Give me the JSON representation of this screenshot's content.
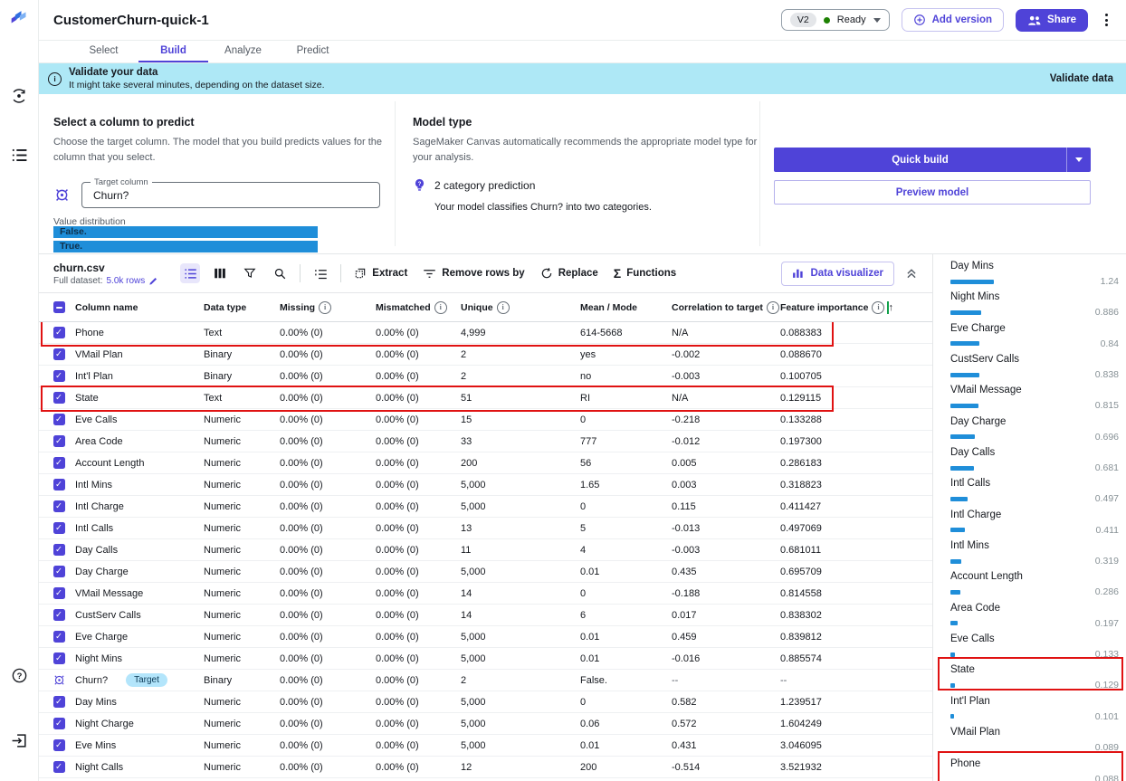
{
  "colors": {
    "accent": "#4f43d8",
    "banner_bg": "#aee8f6",
    "bar_blue": "#1f8ed9",
    "status_green": "#1d8102",
    "annotation_red": "#e01212",
    "annotation_green": "#12a14b",
    "target_badge_bg": "#b3e5fb"
  },
  "header": {
    "title": "CustomerChurn-quick-1",
    "version": "V2",
    "status": "Ready",
    "add_version": "Add version",
    "share": "Share"
  },
  "tabs": [
    {
      "label": "Select",
      "active": false
    },
    {
      "label": "Build",
      "active": true
    },
    {
      "label": "Analyze",
      "active": false
    },
    {
      "label": "Predict",
      "active": false
    }
  ],
  "banner": {
    "title": "Validate your data",
    "subtitle": "It might take several minutes, depending on the dataset size.",
    "action": "Validate data"
  },
  "target_section": {
    "title": "Select a column to predict",
    "description": "Choose the target column. The model that you build predicts values for the column that you select.",
    "target_column_label": "Target column",
    "target_column_value": "Churn?",
    "value_distribution_label": "Value distribution",
    "distribution": [
      {
        "label": "False."
      },
      {
        "label": "True."
      }
    ]
  },
  "model_section": {
    "title": "Model type",
    "description": "SageMaker Canvas automatically recommends the appropriate model type for your analysis.",
    "recommendation": "2 category prediction",
    "detail": "Your model classifies Churn? into two categories."
  },
  "actions": {
    "quick_build": "Quick build",
    "preview_model": "Preview model"
  },
  "toolbar": {
    "filename": "churn.csv",
    "full_dataset_label": "Full dataset:",
    "rows_link": "5.0k rows",
    "extract": "Extract",
    "remove_rows": "Remove rows by",
    "replace": "Replace",
    "functions": "Functions",
    "data_visualizer": "Data visualizer"
  },
  "table": {
    "headers": [
      {
        "label": "Column name"
      },
      {
        "label": "Data type"
      },
      {
        "label": "Missing",
        "info": true
      },
      {
        "label": "Mismatched",
        "info": true
      },
      {
        "label": "Unique",
        "info": true
      },
      {
        "label": "Mean / Mode"
      },
      {
        "label": "Correlation to target",
        "info": true
      },
      {
        "label": "Feature importance",
        "info": true,
        "sort": "up",
        "annotated": true
      }
    ],
    "rows": [
      {
        "name": "Phone",
        "type": "Text",
        "missing": "0.00% (0)",
        "mismatched": "0.00% (0)",
        "unique": "4,999",
        "mean": "614-5668",
        "corr": "N/A",
        "imp": "0.088383",
        "highlighted": true
      },
      {
        "name": "VMail Plan",
        "type": "Binary",
        "missing": "0.00% (0)",
        "mismatched": "0.00% (0)",
        "unique": "2",
        "mean": "yes",
        "corr": "-0.002",
        "imp": "0.088670"
      },
      {
        "name": "Int'l Plan",
        "type": "Binary",
        "missing": "0.00% (0)",
        "mismatched": "0.00% (0)",
        "unique": "2",
        "mean": "no",
        "corr": "-0.003",
        "imp": "0.100705"
      },
      {
        "name": "State",
        "type": "Text",
        "missing": "0.00% (0)",
        "mismatched": "0.00% (0)",
        "unique": "51",
        "mean": "RI",
        "corr": "N/A",
        "imp": "0.129115",
        "highlighted": true
      },
      {
        "name": "Eve Calls",
        "type": "Numeric",
        "missing": "0.00% (0)",
        "mismatched": "0.00% (0)",
        "unique": "15",
        "mean": "0",
        "corr": "-0.218",
        "imp": "0.133288"
      },
      {
        "name": "Area Code",
        "type": "Numeric",
        "missing": "0.00% (0)",
        "mismatched": "0.00% (0)",
        "unique": "33",
        "mean": "777",
        "corr": "-0.012",
        "imp": "0.197300"
      },
      {
        "name": "Account Length",
        "type": "Numeric",
        "missing": "0.00% (0)",
        "mismatched": "0.00% (0)",
        "unique": "200",
        "mean": "56",
        "corr": "0.005",
        "imp": "0.286183"
      },
      {
        "name": "Intl Mins",
        "type": "Numeric",
        "missing": "0.00% (0)",
        "mismatched": "0.00% (0)",
        "unique": "5,000",
        "mean": "1.65",
        "corr": "0.003",
        "imp": "0.318823"
      },
      {
        "name": "Intl Charge",
        "type": "Numeric",
        "missing": "0.00% (0)",
        "mismatched": "0.00% (0)",
        "unique": "5,000",
        "mean": "0",
        "corr": "0.115",
        "imp": "0.411427"
      },
      {
        "name": "Intl Calls",
        "type": "Numeric",
        "missing": "0.00% (0)",
        "mismatched": "0.00% (0)",
        "unique": "13",
        "mean": "5",
        "corr": "-0.013",
        "imp": "0.497069"
      },
      {
        "name": "Day Calls",
        "type": "Numeric",
        "missing": "0.00% (0)",
        "mismatched": "0.00% (0)",
        "unique": "11",
        "mean": "4",
        "corr": "-0.003",
        "imp": "0.681011"
      },
      {
        "name": "Day Charge",
        "type": "Numeric",
        "missing": "0.00% (0)",
        "mismatched": "0.00% (0)",
        "unique": "5,000",
        "mean": "0.01",
        "corr": "0.435",
        "imp": "0.695709"
      },
      {
        "name": "VMail Message",
        "type": "Numeric",
        "missing": "0.00% (0)",
        "mismatched": "0.00% (0)",
        "unique": "14",
        "mean": "0",
        "corr": "-0.188",
        "imp": "0.814558"
      },
      {
        "name": "CustServ Calls",
        "type": "Numeric",
        "missing": "0.00% (0)",
        "mismatched": "0.00% (0)",
        "unique": "14",
        "mean": "6",
        "corr": "0.017",
        "imp": "0.838302"
      },
      {
        "name": "Eve Charge",
        "type": "Numeric",
        "missing": "0.00% (0)",
        "mismatched": "0.00% (0)",
        "unique": "5,000",
        "mean": "0.01",
        "corr": "0.459",
        "imp": "0.839812"
      },
      {
        "name": "Night Mins",
        "type": "Numeric",
        "missing": "0.00% (0)",
        "mismatched": "0.00% (0)",
        "unique": "5,000",
        "mean": "0.01",
        "corr": "-0.016",
        "imp": "0.885574"
      },
      {
        "name": "Churn?",
        "badge": "Target",
        "target": true,
        "type": "Binary",
        "missing": "0.00% (0)",
        "mismatched": "0.00% (0)",
        "unique": "2",
        "mean": "False.",
        "corr": "--",
        "imp": "--"
      },
      {
        "name": "Day Mins",
        "type": "Numeric",
        "missing": "0.00% (0)",
        "mismatched": "0.00% (0)",
        "unique": "5,000",
        "mean": "0",
        "corr": "0.582",
        "imp": "1.239517"
      },
      {
        "name": "Night Charge",
        "type": "Numeric",
        "missing": "0.00% (0)",
        "mismatched": "0.00% (0)",
        "unique": "5,000",
        "mean": "0.06",
        "corr": "0.572",
        "imp": "1.604249"
      },
      {
        "name": "Eve Mins",
        "type": "Numeric",
        "missing": "0.00% (0)",
        "mismatched": "0.00% (0)",
        "unique": "5,000",
        "mean": "0.01",
        "corr": "0.431",
        "imp": "3.046095"
      },
      {
        "name": "Night Calls",
        "type": "Numeric",
        "missing": "0.00% (0)",
        "mismatched": "0.00% (0)",
        "unique": "12",
        "mean": "200",
        "corr": "-0.514",
        "imp": "3.521932"
      }
    ]
  },
  "feature_importance_panel": {
    "items": [
      {
        "label": "Day Mins",
        "value": "1.24",
        "num": 1.24
      },
      {
        "label": "Night Mins",
        "value": "0.886",
        "num": 0.886
      },
      {
        "label": "Eve Charge",
        "value": "0.84",
        "num": 0.84
      },
      {
        "label": "CustServ Calls",
        "value": "0.838",
        "num": 0.838
      },
      {
        "label": "VMail Message",
        "value": "0.815",
        "num": 0.815
      },
      {
        "label": "Day Charge",
        "value": "0.696",
        "num": 0.696
      },
      {
        "label": "Day Calls",
        "value": "0.681",
        "num": 0.681
      },
      {
        "label": "Intl Calls",
        "value": "0.497",
        "num": 0.497
      },
      {
        "label": "Intl Charge",
        "value": "0.411",
        "num": 0.411
      },
      {
        "label": "Intl Mins",
        "value": "0.319",
        "num": 0.319
      },
      {
        "label": "Account Length",
        "value": "0.286",
        "num": 0.286
      },
      {
        "label": "Area Code",
        "value": "0.197",
        "num": 0.197
      },
      {
        "label": "Eve Calls",
        "value": "0.133",
        "num": 0.133
      },
      {
        "label": "State",
        "value": "0.129",
        "num": 0.129,
        "highlighted": true
      },
      {
        "label": "Int'l Plan",
        "value": "0.101",
        "num": 0.101
      },
      {
        "label": "VMail Plan",
        "value": "0.089",
        "num": 0.089
      },
      {
        "label": "Phone",
        "value": "0.088",
        "num": 0.088,
        "highlighted": true
      }
    ]
  },
  "annotations": {
    "highlighted_rows": [
      "Phone",
      "State"
    ],
    "highlighted_panel_items": [
      "State",
      "Phone"
    ],
    "highlighted_header": "Feature importance"
  }
}
